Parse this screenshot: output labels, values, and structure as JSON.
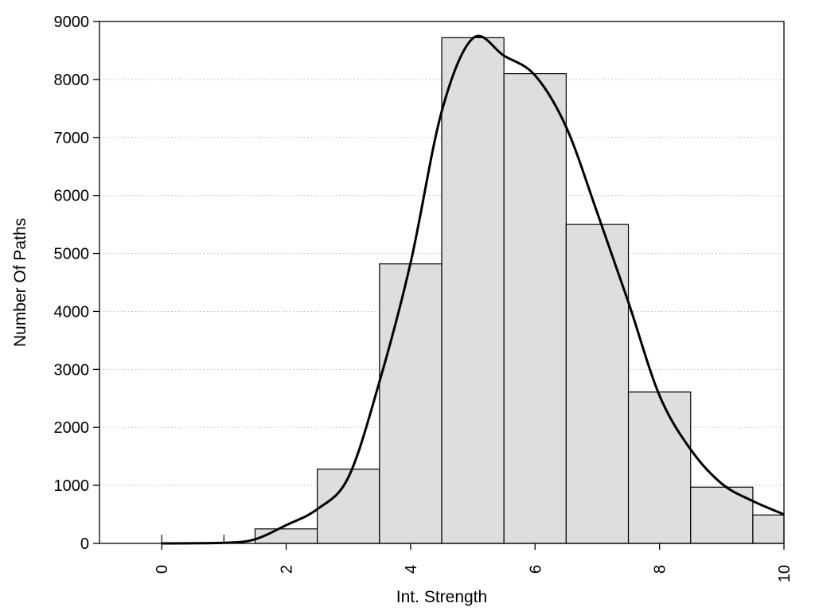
{
  "chart_data": {
    "type": "bar",
    "title": "",
    "xlabel": "Int. Strength",
    "ylabel": "Number Of Paths",
    "xlim": [
      -1,
      10
    ],
    "ylim": [
      0,
      9000
    ],
    "grid": "horizontal dotted",
    "x_ticks": [
      0,
      2,
      4,
      6,
      8,
      10
    ],
    "y_ticks": [
      0,
      1000,
      2000,
      3000,
      4000,
      5000,
      6000,
      7000,
      8000,
      9000
    ],
    "bars": [
      {
        "x0": 1.5,
        "x1": 2.5,
        "value": 250
      },
      {
        "x0": 2.5,
        "x1": 3.5,
        "value": 1280
      },
      {
        "x0": 3.5,
        "x1": 4.5,
        "value": 4820
      },
      {
        "x0": 4.5,
        "x1": 5.5,
        "value": 8720
      },
      {
        "x0": 5.5,
        "x1": 6.5,
        "value": 8100
      },
      {
        "x0": 6.5,
        "x1": 7.5,
        "value": 5500
      },
      {
        "x0": 7.5,
        "x1": 8.5,
        "value": 2610
      },
      {
        "x0": 8.5,
        "x1": 9.5,
        "value": 970
      },
      {
        "x0": 9.5,
        "x1": 10,
        "value": 490
      }
    ],
    "bar_color": "#dedede",
    "density_curve": {
      "x": [
        0,
        1,
        1.5,
        2,
        2.5,
        3,
        3.5,
        4,
        4.5,
        5,
        5.5,
        6,
        6.5,
        7,
        7.5,
        8,
        8.5,
        9,
        9.5,
        10
      ],
      "y": [
        0,
        10,
        70,
        315,
        590,
        1140,
        2790,
        4840,
        7450,
        8710,
        8410,
        8070,
        7180,
        5700,
        4160,
        2550,
        1620,
        1030,
        730,
        500
      ],
      "color": "#000000"
    }
  }
}
